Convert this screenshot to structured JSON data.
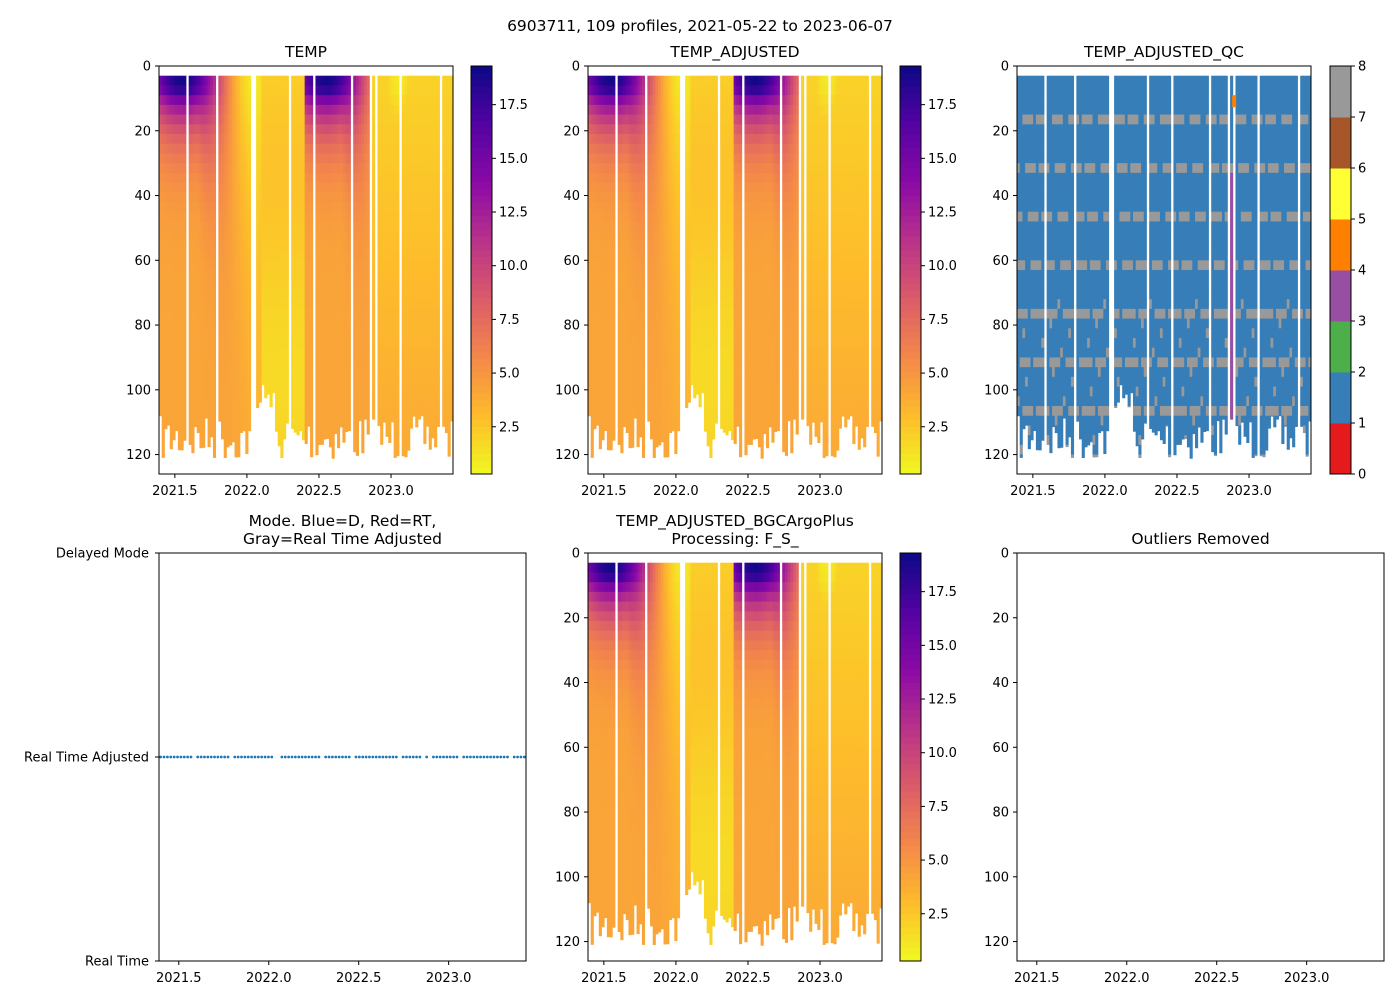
{
  "figure_title": "6903711, 109 profiles, 2021-05-22 to 2023-06-07",
  "chart_data": [
    {
      "id": "temp",
      "type": "heatmap",
      "title": "TEMP",
      "x_ticks": [
        "2021.5",
        "2022.0",
        "2022.5",
        "2023.0"
      ],
      "y_ticks": [
        "0",
        "20",
        "40",
        "60",
        "80",
        "100",
        "120"
      ],
      "xlim": [
        2021.39,
        2023.43
      ],
      "ylim": [
        126,
        0
      ],
      "colormap": "plasma_r",
      "colorbar": {
        "min": 0.3,
        "max": 19.3,
        "ticks": [
          "2.5",
          "5.0",
          "7.5",
          "10.0",
          "12.5",
          "15.0",
          "17.5"
        ]
      }
    },
    {
      "id": "temp_adj",
      "type": "heatmap",
      "title": "TEMP_ADJUSTED",
      "x_ticks": [
        "2021.5",
        "2022.0",
        "2022.5",
        "2023.0"
      ],
      "y_ticks": [
        "0",
        "20",
        "40",
        "60",
        "80",
        "100",
        "120"
      ],
      "xlim": [
        2021.39,
        2023.43
      ],
      "ylim": [
        126,
        0
      ],
      "colormap": "plasma_r",
      "colorbar": {
        "min": 0.3,
        "max": 19.3,
        "ticks": [
          "2.5",
          "5.0",
          "7.5",
          "10.0",
          "12.5",
          "15.0",
          "17.5"
        ]
      }
    },
    {
      "id": "temp_qc",
      "type": "heatmap",
      "title": "TEMP_ADJUSTED_QC",
      "x_ticks": [
        "2021.5",
        "2022.0",
        "2022.5",
        "2023.0"
      ],
      "y_ticks": [
        "0",
        "20",
        "40",
        "60",
        "80",
        "100",
        "120"
      ],
      "xlim": [
        2021.39,
        2023.43
      ],
      "ylim": [
        126,
        0
      ],
      "qc_colors": [
        "#e41a1c",
        "#377eb8",
        "#4daf4a",
        "#984ea3",
        "#ff7f00",
        "#ffff33",
        "#a65628",
        "#f781bf",
        "#999999"
      ],
      "colorbar_ticks": [
        "0",
        "1",
        "2",
        "3",
        "4",
        "5",
        "6",
        "7",
        "8"
      ]
    },
    {
      "id": "mode",
      "type": "scatter",
      "title_line1": "Mode. Blue=D, Red=RT,",
      "title_line2": "Gray=Real Time Adjusted",
      "x_ticks": [
        "2021.5",
        "2022.0",
        "2022.5",
        "2023.0"
      ],
      "xlim": [
        2021.39,
        2023.43
      ],
      "y_categories": [
        "Real Time",
        "Real Time Adjusted",
        "Delayed Mode"
      ],
      "series_color": "#1f77b4",
      "series_value": "Real Time Adjusted"
    },
    {
      "id": "temp_bgc",
      "type": "heatmap",
      "title_line1": "TEMP_ADJUSTED_BGCArgoPlus",
      "title_line2": "Processing: F_S_",
      "x_ticks": [
        "2021.5",
        "2022.0",
        "2022.5",
        "2023.0"
      ],
      "y_ticks": [
        "0",
        "20",
        "40",
        "60",
        "80",
        "100",
        "120"
      ],
      "xlim": [
        2021.39,
        2023.43
      ],
      "ylim": [
        126,
        0
      ],
      "colormap": "plasma_r",
      "colorbar": {
        "min": 0.3,
        "max": 19.3,
        "ticks": [
          "2.5",
          "5.0",
          "7.5",
          "10.0",
          "12.5",
          "15.0",
          "17.5"
        ]
      }
    },
    {
      "id": "outliers",
      "type": "heatmap",
      "title": "Outliers Removed",
      "x_ticks": [
        "2021.5",
        "2022.0",
        "2022.5",
        "2023.0"
      ],
      "y_ticks": [
        "0",
        "20",
        "40",
        "60",
        "80",
        "100",
        "120"
      ],
      "xlim": [
        2021.39,
        2023.43
      ],
      "ylim": [
        126,
        0
      ]
    }
  ]
}
